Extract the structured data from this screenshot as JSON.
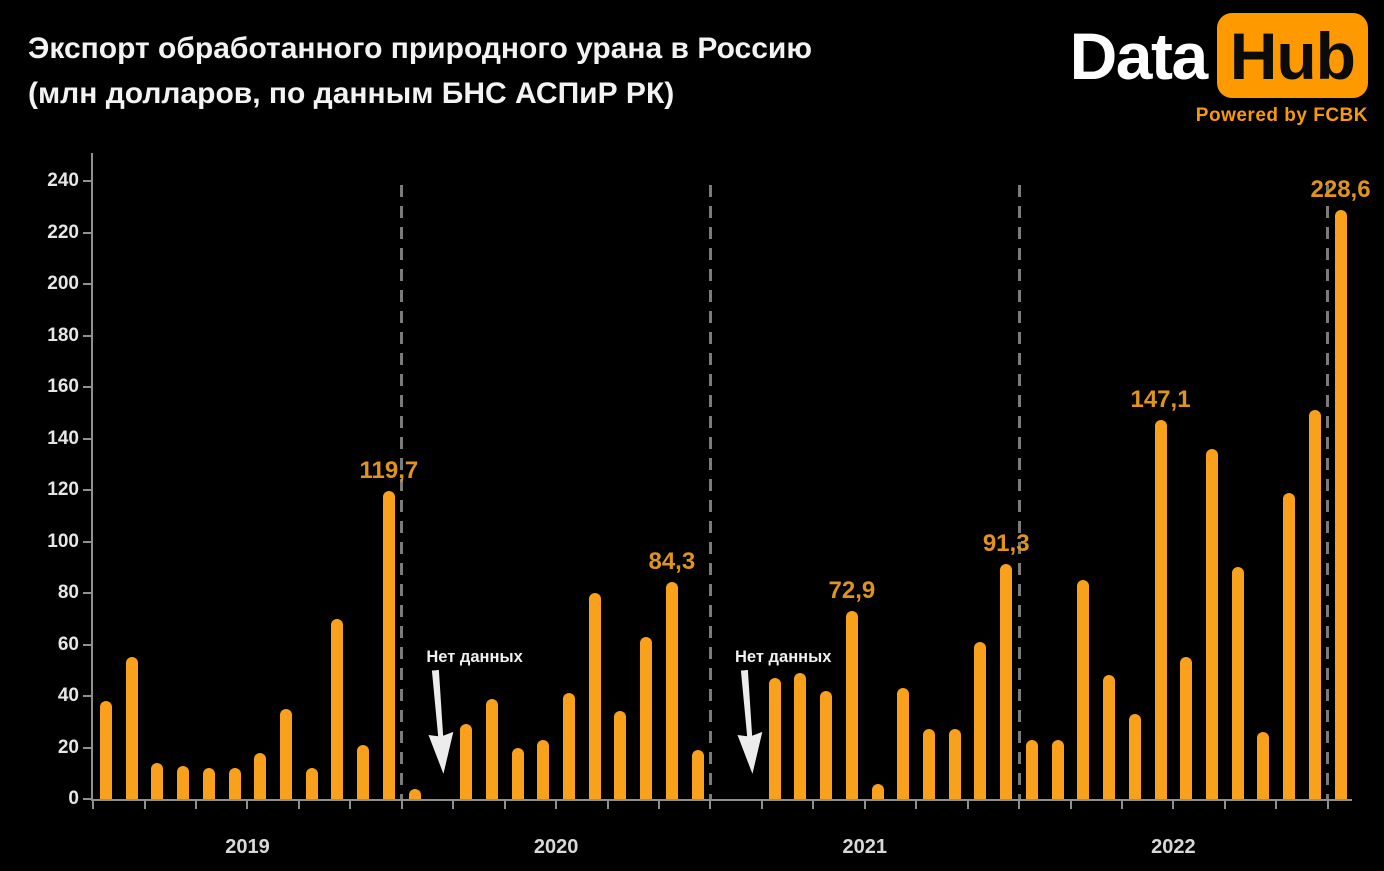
{
  "header": {
    "logo": {
      "part1": "Data",
      "part2": "Hub",
      "tagline": "Powered by FCBK"
    }
  },
  "colors": {
    "background": "#000000",
    "bar": "#F9A11D",
    "value_label": "#E0941C",
    "logo_orange": "#FF9900",
    "axis": "#909090",
    "tick_label": "#E6E6E6",
    "year_label": "#D8D8D8",
    "separator": "#7B7B7B",
    "annotation_text": "#F0F0F0",
    "annotation_arrow": "#ECECEC"
  },
  "chart_data": {
    "type": "bar",
    "title": "Экспорт обработанного природного урана в Россию",
    "subtitle": "(млн долларов, по данным БНС АСПиР РК)",
    "xlabel": "",
    "ylabel": "",
    "ylim": [
      0,
      240
    ],
    "ytick_step": 20,
    "grid": false,
    "legend": false,
    "years": [
      {
        "label": "2019",
        "values": [
          38,
          55,
          14,
          13,
          12,
          12,
          18,
          35,
          12,
          70,
          21,
          119.7
        ]
      },
      {
        "label": "2020",
        "values": [
          4,
          null,
          29,
          39,
          20,
          23,
          41,
          80,
          34,
          63,
          84.3,
          19
        ]
      },
      {
        "label": "2021",
        "values": [
          null,
          null,
          47,
          49,
          42,
          72.9,
          6,
          43,
          27,
          27,
          61,
          91.3
        ]
      },
      {
        "label": "2022",
        "values": [
          23,
          23,
          85,
          48,
          33,
          147.1,
          55,
          136,
          90,
          26,
          119,
          151
        ]
      },
      {
        "label": "",
        "values": [
          228.6
        ]
      }
    ],
    "value_labels": [
      {
        "index": 11,
        "text": "119,7"
      },
      {
        "index": 22,
        "text": "84,3"
      },
      {
        "index": 29,
        "text": "72,9"
      },
      {
        "index": 35,
        "text": "91,3"
      },
      {
        "index": 41,
        "text": "147,1"
      },
      {
        "index": 48,
        "text": "228,6"
      }
    ],
    "annotations": [
      {
        "text": "Нет данных",
        "month_index": 13
      },
      {
        "text": "Нет данных",
        "month_index": 25
      }
    ],
    "year_separators_after_index": [
      11,
      23,
      35,
      47
    ]
  }
}
